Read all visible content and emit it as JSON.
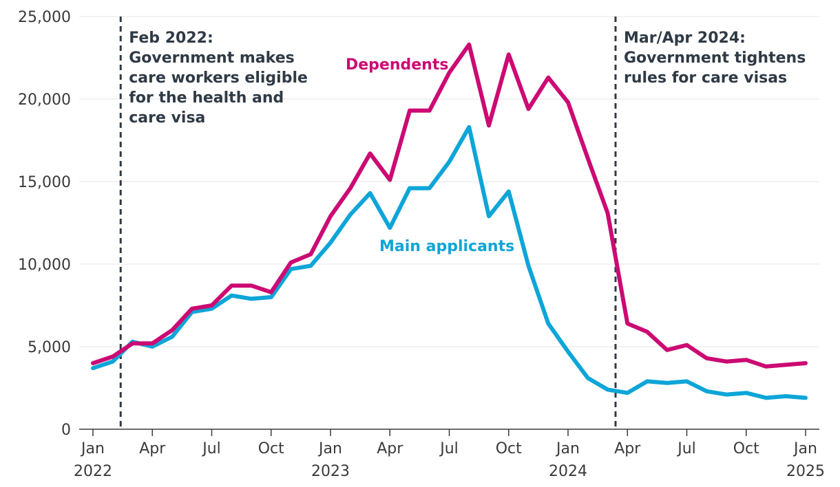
{
  "chart_data": {
    "type": "line",
    "title": "",
    "xlabel": "",
    "ylabel": "",
    "ylim": [
      0,
      25000
    ],
    "yticks": [
      {
        "value": 0,
        "label": "0"
      },
      {
        "value": 5000,
        "label": "5,000"
      },
      {
        "value": 10000,
        "label": "10,000"
      },
      {
        "value": 15000,
        "label": "15,000"
      },
      {
        "value": 20000,
        "label": "20,000"
      },
      {
        "value": 25000,
        "label": "25,000"
      }
    ],
    "x": [
      "Jan 2022",
      "Feb 2022",
      "Mar 2022",
      "Apr 2022",
      "May 2022",
      "Jun 2022",
      "Jul 2022",
      "Aug 2022",
      "Sep 2022",
      "Oct 2022",
      "Nov 2022",
      "Dec 2022",
      "Jan 2023",
      "Feb 2023",
      "Mar 2023",
      "Apr 2023",
      "May 2023",
      "Jun 2023",
      "Jul 2023",
      "Aug 2023",
      "Sep 2023",
      "Oct 2023",
      "Nov 2023",
      "Dec 2023",
      "Jan 2024",
      "Feb 2024",
      "Mar 2024",
      "Apr 2024",
      "May 2024",
      "Jun 2024",
      "Jul 2024",
      "Aug 2024",
      "Sep 2024",
      "Oct 2024",
      "Nov 2024",
      "Dec 2024",
      "Jan 2025"
    ],
    "xticks": [
      {
        "index": 0,
        "line1": "Jan",
        "line2": "2022"
      },
      {
        "index": 3,
        "line1": "Apr",
        "line2": ""
      },
      {
        "index": 6,
        "line1": "Jul",
        "line2": ""
      },
      {
        "index": 9,
        "line1": "Oct",
        "line2": ""
      },
      {
        "index": 12,
        "line1": "Jan",
        "line2": "2023"
      },
      {
        "index": 15,
        "line1": "Apr",
        "line2": ""
      },
      {
        "index": 18,
        "line1": "Jul",
        "line2": ""
      },
      {
        "index": 21,
        "line1": "Oct",
        "line2": ""
      },
      {
        "index": 24,
        "line1": "Jan",
        "line2": "2024"
      },
      {
        "index": 27,
        "line1": "Apr",
        "line2": ""
      },
      {
        "index": 30,
        "line1": "Jul",
        "line2": ""
      },
      {
        "index": 33,
        "line1": "Oct",
        "line2": ""
      },
      {
        "index": 36,
        "line1": "Jan",
        "line2": "2025"
      }
    ],
    "series": [
      {
        "name": "Dependents",
        "color": "#cc0a73",
        "values": [
          4000,
          4400,
          5200,
          5200,
          6000,
          7300,
          7500,
          8700,
          8700,
          8300,
          10100,
          10600,
          12900,
          14600,
          16700,
          15100,
          19300,
          19300,
          21600,
          23300,
          18400,
          22700,
          19400,
          21300,
          19800,
          16400,
          13100,
          6400,
          5900,
          4800,
          5100,
          4300,
          4100,
          4200,
          3800,
          3900,
          4000
        ]
      },
      {
        "name": "Main applicants",
        "color": "#0ea5d8",
        "values": [
          3700,
          4100,
          5300,
          5000,
          5600,
          7100,
          7300,
          8100,
          7900,
          8000,
          9700,
          9900,
          11300,
          13000,
          14300,
          12200,
          14600,
          14600,
          16200,
          18300,
          12900,
          14400,
          9900,
          6400,
          4700,
          3100,
          2400,
          2200,
          2900,
          2800,
          2900,
          2300,
          2100,
          2200,
          1900,
          2000,
          1900
        ]
      }
    ],
    "annotations": [
      {
        "x_index": 1.4,
        "lines": [
          "Feb 2022:",
          "Government makes",
          "care workers eligible",
          "for the health and",
          "care visa"
        ]
      },
      {
        "x_index": 26.4,
        "lines": [
          "Mar/Apr 2024:",
          "Government tightens",
          "rules for care visas"
        ]
      }
    ]
  }
}
